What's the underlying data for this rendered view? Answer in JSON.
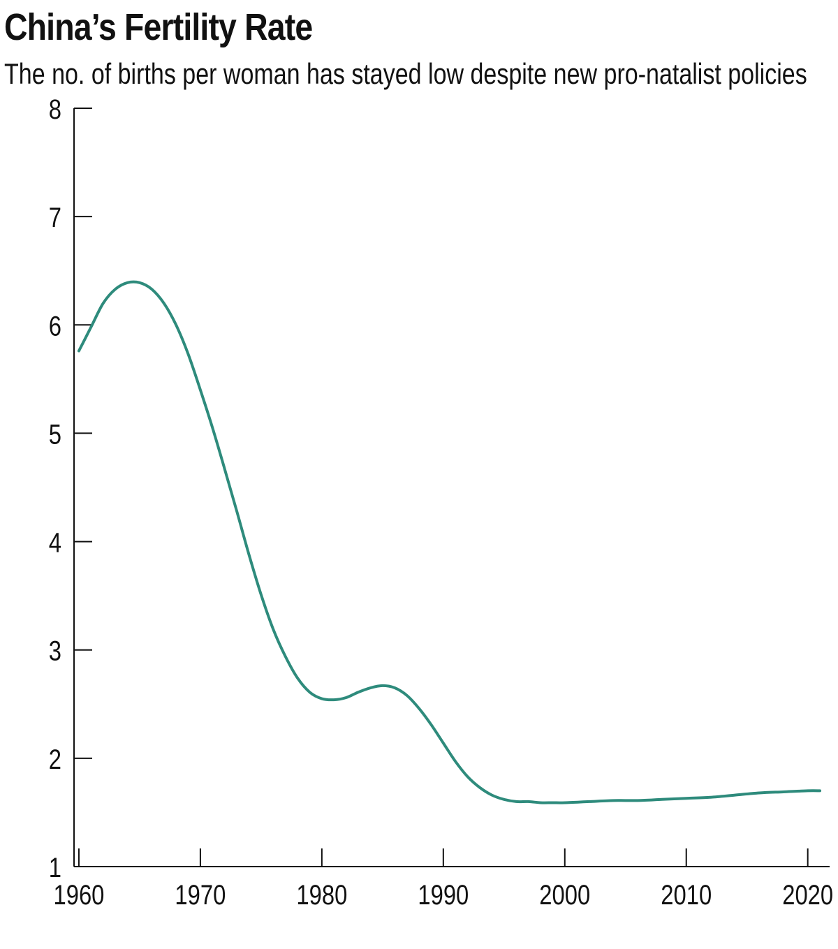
{
  "title": "China’s Fertility Rate",
  "subtitle": "The no. of births per woman has stayed low despite new pro-natalist policies",
  "colors": {
    "line": "#2e8b7c",
    "axis": "#111111"
  },
  "chart_data": {
    "type": "line",
    "title": "China’s Fertility Rate",
    "subtitle": "The no. of births per woman has stayed low despite new pro-natalist policies",
    "xlabel": "",
    "ylabel": "",
    "xlim": [
      1959.6,
      2021.8
    ],
    "ylim": [
      1,
      8
    ],
    "x_ticks": [
      1960,
      1970,
      1980,
      1990,
      2000,
      2010,
      2020
    ],
    "y_ticks": [
      1,
      2,
      3,
      4,
      5,
      6,
      7,
      8
    ],
    "grid": false,
    "legend": "none",
    "series": [
      {
        "x": [
          1960,
          1961,
          1962,
          1963,
          1964,
          1965,
          1966,
          1967,
          1968,
          1969,
          1970,
          1971,
          1972,
          1973,
          1974,
          1975,
          1976,
          1977,
          1978,
          1979,
          1980,
          1981,
          1982,
          1983,
          1984,
          1985,
          1986,
          1987,
          1988,
          1989,
          1990,
          1991,
          1992,
          1993,
          1994,
          1995,
          1996,
          1997,
          1998,
          1999,
          2000,
          2002,
          2004,
          2006,
          2008,
          2010,
          2012,
          2014,
          2016,
          2018,
          2020,
          2021
        ],
        "values": [
          5.76,
          5.98,
          6.2,
          6.33,
          6.39,
          6.39,
          6.33,
          6.2,
          6.0,
          5.73,
          5.4,
          5.05,
          4.67,
          4.28,
          3.88,
          3.51,
          3.19,
          2.94,
          2.74,
          2.61,
          2.55,
          2.54,
          2.56,
          2.61,
          2.65,
          2.67,
          2.65,
          2.58,
          2.46,
          2.31,
          2.14,
          1.97,
          1.83,
          1.73,
          1.66,
          1.62,
          1.6,
          1.6,
          1.59,
          1.59,
          1.59,
          1.6,
          1.61,
          1.61,
          1.62,
          1.63,
          1.64,
          1.66,
          1.68,
          1.69,
          1.7,
          1.7
        ]
      }
    ]
  }
}
